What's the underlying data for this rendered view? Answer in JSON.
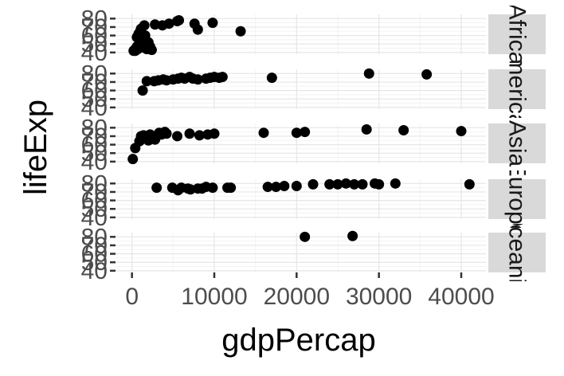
{
  "chart_data": {
    "type": "scatter",
    "xlabel": "gdpPercap",
    "ylabel": "lifeExp",
    "xlim": [
      -2000,
      43000
    ],
    "ylim": [
      38,
      85
    ],
    "x_ticks": [
      0,
      10000,
      20000,
      30000,
      40000
    ],
    "x_tick_labels": [
      "0",
      "10000",
      "20000",
      "30000",
      "40000"
    ],
    "y_ticks": [
      40,
      50,
      60,
      70,
      80
    ],
    "y_tick_labels": [
      "40",
      "50",
      "60",
      "70",
      "80"
    ],
    "grid": true,
    "facets": [
      {
        "strip_label": "Africa",
        "points": [
          [
            200,
            42
          ],
          [
            300,
            43
          ],
          [
            400,
            42
          ],
          [
            500,
            45
          ],
          [
            600,
            47
          ],
          [
            700,
            44
          ],
          [
            800,
            48
          ],
          [
            900,
            50
          ],
          [
            1000,
            52
          ],
          [
            1100,
            46
          ],
          [
            1200,
            55
          ],
          [
            1300,
            58
          ],
          [
            1400,
            46
          ],
          [
            1500,
            49
          ],
          [
            1600,
            60
          ],
          [
            1700,
            50
          ],
          [
            1800,
            44
          ],
          [
            2000,
            52
          ],
          [
            2200,
            47
          ],
          [
            2400,
            43
          ],
          [
            1000,
            65
          ],
          [
            1500,
            72
          ],
          [
            2800,
            73
          ],
          [
            3700,
            72
          ],
          [
            4500,
            74
          ],
          [
            5500,
            77
          ],
          [
            5700,
            78
          ],
          [
            7600,
            74
          ],
          [
            8000,
            67
          ],
          [
            9800,
            75
          ],
          [
            13200,
            65
          ],
          [
            600,
            58
          ],
          [
            800,
            62
          ],
          [
            1100,
            68
          ]
        ]
      },
      {
        "strip_label": "Americas",
        "points": [
          [
            1300,
            60
          ],
          [
            1800,
            71
          ],
          [
            2700,
            71
          ],
          [
            3200,
            72
          ],
          [
            3800,
            73
          ],
          [
            4200,
            72
          ],
          [
            5000,
            73
          ],
          [
            5600,
            74
          ],
          [
            6000,
            75
          ],
          [
            6400,
            74
          ],
          [
            7000,
            76
          ],
          [
            7400,
            74
          ],
          [
            8000,
            73
          ],
          [
            9000,
            74
          ],
          [
            9500,
            75
          ],
          [
            10000,
            76
          ],
          [
            10600,
            75
          ],
          [
            11000,
            76
          ],
          [
            17000,
            75
          ],
          [
            28800,
            80
          ],
          [
            35800,
            79
          ]
        ]
      },
      {
        "strip_label": "Asia",
        "points": [
          [
            100,
            43
          ],
          [
            900,
            64
          ],
          [
            1000,
            65
          ],
          [
            1100,
            70
          ],
          [
            1200,
            67
          ],
          [
            1400,
            71
          ],
          [
            1700,
            68
          ],
          [
            2000,
            65
          ],
          [
            2200,
            72
          ],
          [
            2500,
            70
          ],
          [
            2800,
            66
          ],
          [
            3000,
            70
          ],
          [
            3300,
            74
          ],
          [
            3600,
            72
          ],
          [
            4200,
            73
          ],
          [
            4000,
            75
          ],
          [
            5500,
            70
          ],
          [
            7000,
            73
          ],
          [
            8200,
            71
          ],
          [
            9200,
            72
          ],
          [
            10000,
            73
          ],
          [
            16000,
            74
          ],
          [
            20000,
            74
          ],
          [
            21000,
            75
          ],
          [
            28500,
            78
          ],
          [
            33000,
            77
          ],
          [
            40000,
            76
          ],
          [
            400,
            56
          ]
        ]
      },
      {
        "strip_label": "Europe",
        "points": [
          [
            3000,
            75
          ],
          [
            4900,
            75
          ],
          [
            6000,
            75
          ],
          [
            6800,
            74
          ],
          [
            7100,
            73
          ],
          [
            8000,
            74
          ],
          [
            9000,
            76
          ],
          [
            9800,
            75
          ],
          [
            11600,
            75
          ],
          [
            12000,
            75
          ],
          [
            16500,
            76
          ],
          [
            17500,
            76
          ],
          [
            18500,
            77
          ],
          [
            20000,
            77
          ],
          [
            22000,
            79
          ],
          [
            24000,
            79
          ],
          [
            25000,
            79
          ],
          [
            26000,
            80
          ],
          [
            27000,
            79
          ],
          [
            28000,
            79
          ],
          [
            29500,
            80
          ],
          [
            30000,
            79
          ],
          [
            32000,
            80
          ],
          [
            41000,
            79
          ],
          [
            5600,
            72
          ],
          [
            8500,
            74
          ]
        ]
      },
      {
        "strip_label": "Oceania",
        "points": [
          [
            21000,
            80
          ],
          [
            26800,
            81
          ]
        ]
      }
    ]
  }
}
